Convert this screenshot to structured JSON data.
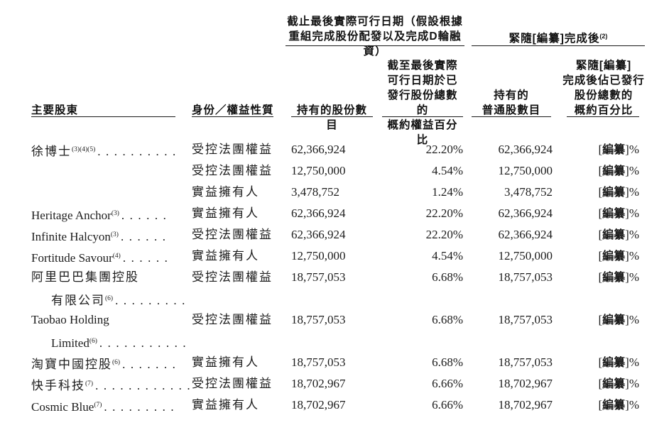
{
  "page": {
    "background": "#ffffff",
    "text_color": "#1c1c1c",
    "rule_color": "#1a1a1a"
  },
  "table": {
    "group_headers": [
      {
        "title_lines": "截止最後實際可行日期（假設根據\n重組完成股份配發以及完成D輪融資）",
        "superscript": ""
      },
      {
        "title": "緊隨[編纂]完成後",
        "superscript": "(2)"
      }
    ],
    "columns": [
      {
        "label": "主要股東"
      },
      {
        "label": "身份／權益性質"
      },
      {
        "label": "持有的股份數目"
      },
      {
        "label": "截至最後實際\n可行日期於已\n發行股份總數的\n概約權益百分比"
      },
      {
        "label": "持有的\n普通股數目"
      },
      {
        "label": "緊隨[編纂]\n完成後佔已發行\n股份總數的\n概約百分比"
      }
    ],
    "redacted": {
      "open": "[",
      "bold": "編纂",
      "close": "]%"
    },
    "rows": [
      {
        "name1": "徐博士",
        "sup1": "(3)(4)(5)",
        "dots1": "..........",
        "name2": "",
        "sup2": "",
        "dots2": "",
        "identity": "受控法團權益",
        "shares": "62,366,924",
        "pct": "22.20%",
        "ordinary": "62,366,924"
      },
      {
        "name1": "",
        "sup1": "",
        "dots1": "",
        "name2": "",
        "sup2": "",
        "dots2": "",
        "identity": "受控法團權益",
        "shares": "12,750,000",
        "pct": "4.54%",
        "ordinary": "12,750,000"
      },
      {
        "name1": "",
        "sup1": "",
        "dots1": "",
        "name2": "",
        "sup2": "",
        "dots2": "",
        "identity": "實益擁有人",
        "shares": "3,478,752",
        "pct": "1.24%",
        "ordinary": "3,478,752"
      },
      {
        "name1": "Heritage Anchor",
        "sup1": "(3)",
        "dots1": "......",
        "name2": "",
        "sup2": "",
        "dots2": "",
        "identity": "實益擁有人",
        "shares": "62,366,924",
        "pct": "22.20%",
        "ordinary": "62,366,924"
      },
      {
        "name1": "Infinite Halcyon",
        "sup1": "(3)",
        "dots1": "......",
        "name2": "",
        "sup2": "",
        "dots2": "",
        "identity": "受控法團權益",
        "shares": "62,366,924",
        "pct": "22.20%",
        "ordinary": "62,366,924"
      },
      {
        "name1": "Fortitude Savour",
        "sup1": "(4)",
        "dots1": "......",
        "name2": "",
        "sup2": "",
        "dots2": "",
        "identity": "實益擁有人",
        "shares": "12,750,000",
        "pct": "4.54%",
        "ordinary": "12,750,000"
      },
      {
        "name1": "阿里巴巴集團控股",
        "sup1": "",
        "dots1": "",
        "name2": "有限公司",
        "sup2": "(6)",
        "dots2": ".........",
        "identity": "受控法團權益",
        "shares": "18,757,053",
        "pct": "6.68%",
        "ordinary": "18,757,053"
      },
      {
        "name1": "Taobao Holding",
        "sup1": "",
        "dots1": "",
        "name2": "Limited",
        "sup2": "(6)",
        "dots2": "...........",
        "identity": "受控法團權益",
        "shares": "18,757,053",
        "pct": "6.68%",
        "ordinary": "18,757,053"
      },
      {
        "name1": "淘寶中國控股",
        "sup1": "(6)",
        "dots1": ".......",
        "name2": "",
        "sup2": "",
        "dots2": "",
        "identity": "實益擁有人",
        "shares": "18,757,053",
        "pct": "6.68%",
        "ordinary": "18,757,053"
      },
      {
        "name1": "快手科技",
        "sup1": "(7)",
        "dots1": "............",
        "name2": "",
        "sup2": "",
        "dots2": "",
        "identity": "受控法團權益",
        "shares": "18,702,967",
        "pct": "6.66%",
        "ordinary": "18,702,967"
      },
      {
        "name1": "Cosmic Blue",
        "sup1": "(7)",
        "dots1": ".........",
        "name2": "",
        "sup2": "",
        "dots2": "",
        "identity": "實益擁有人",
        "shares": "18,702,967",
        "pct": "6.66%",
        "ordinary": "18,702,967"
      }
    ]
  }
}
